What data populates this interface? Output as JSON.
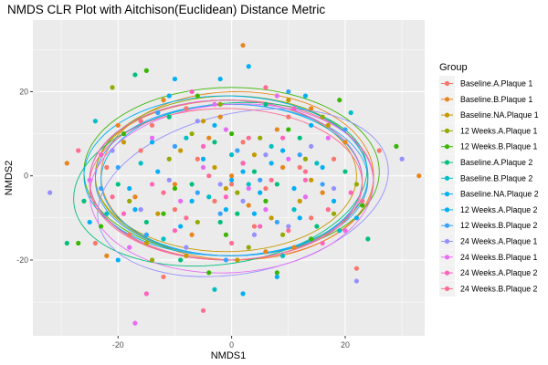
{
  "chart_data": {
    "type": "scatter",
    "title": "NMDS CLR Plot with Aitchison(Euclidean) Distance Metric",
    "xlabel": "NMDS1",
    "ylabel": "NMDS2",
    "xlim": [
      -35,
      34
    ],
    "ylim": [
      -38,
      37
    ],
    "xticks": [
      -20,
      0,
      20
    ],
    "xtick_labels": [
      "-20",
      "0",
      "20"
    ],
    "yticks": [
      -20,
      0,
      20
    ],
    "ytick_labels": [
      "-20",
      "0",
      "20"
    ],
    "grid": true,
    "panel_background": "#ebebeb",
    "legend": {
      "title": "Group",
      "position": "right"
    },
    "series": [
      {
        "name": "Baseline.A.Plaque 1",
        "color": "#F8766D",
        "points": [
          [
            -24,
            -16
          ],
          [
            -18,
            -14
          ],
          [
            -22,
            2
          ],
          [
            -14,
            12
          ],
          [
            -10,
            -8
          ],
          [
            -6,
            4
          ],
          [
            -3,
            -6
          ],
          [
            2,
            8
          ],
          [
            6,
            -3
          ],
          [
            10,
            14
          ],
          [
            14,
            -10
          ],
          [
            18,
            4
          ],
          [
            22,
            -22
          ],
          [
            26,
            6
          ],
          [
            -12,
            -24
          ],
          [
            0,
            -2
          ],
          [
            -8,
            16
          ],
          [
            12,
            2
          ],
          [
            4,
            -12
          ],
          [
            -16,
            6
          ]
        ],
        "ellipse": {
          "cx": 0,
          "cy": -1,
          "rx": 25,
          "ry": 19,
          "angle": 0
        }
      },
      {
        "name": "Baseline.B.Plaque 1",
        "color": "#E7861B",
        "points": [
          [
            -29,
            3
          ],
          [
            -22,
            -19
          ],
          [
            -17,
            -5
          ],
          [
            -12,
            18
          ],
          [
            -7,
            -14
          ],
          [
            -4,
            9
          ],
          [
            0,
            0
          ],
          [
            3,
            -7
          ],
          [
            8,
            11
          ],
          [
            11,
            -17
          ],
          [
            16,
            -4
          ],
          [
            20,
            8
          ],
          [
            2,
            31
          ],
          [
            33,
            0
          ],
          [
            -10,
            -2
          ],
          [
            6,
            -18
          ],
          [
            14,
            16
          ],
          [
            -2,
            14
          ],
          [
            9,
            2
          ],
          [
            -20,
            12
          ]
        ],
        "ellipse": {
          "cx": 1,
          "cy": 0,
          "rx": 24,
          "ry": 20,
          "angle": 0
        }
      },
      {
        "name": "Baseline.NA.Plaque 1",
        "color": "#C59900",
        "points": [
          [
            -19,
            8
          ],
          [
            -13,
            -9
          ],
          [
            -8,
            -19
          ],
          [
            -5,
            13
          ],
          [
            -1,
            -3
          ],
          [
            4,
            5
          ],
          [
            7,
            -10
          ],
          [
            10,
            18
          ],
          [
            14,
            -1
          ],
          [
            17,
            12
          ],
          [
            -15,
            -16
          ],
          [
            1,
            -20
          ],
          [
            -3,
            2
          ],
          [
            12,
            -6
          ],
          [
            -9,
            6
          ]
        ],
        "ellipse": {
          "cx": -1,
          "cy": 0,
          "rx": 23,
          "ry": 18,
          "angle": 0
        }
      },
      {
        "name": "12 Weeks.A.Plaque 1",
        "color": "#95A900",
        "points": [
          [
            -21,
            21
          ],
          [
            -18,
            -6
          ],
          [
            -11,
            4
          ],
          [
            -6,
            -11
          ],
          [
            -2,
            17
          ],
          [
            1,
            -4
          ],
          [
            5,
            9
          ],
          [
            9,
            -14
          ],
          [
            13,
            4
          ],
          [
            18,
            -9
          ],
          [
            22,
            -2
          ],
          [
            -14,
            -20
          ],
          [
            3,
            -17
          ],
          [
            -7,
            10
          ],
          [
            16,
            14
          ]
        ],
        "ellipse": {
          "cx": 0,
          "cy": 0,
          "rx": 24,
          "ry": 19,
          "angle": 0
        }
      },
      {
        "name": "12 Weeks.B.Plaque 1",
        "color": "#39B600",
        "points": [
          [
            -23,
            -12
          ],
          [
            -19,
            10
          ],
          [
            -15,
            25
          ],
          [
            -10,
            -3
          ],
          [
            -6,
            19
          ],
          [
            -1,
            -14
          ],
          [
            2,
            3
          ],
          [
            6,
            -6
          ],
          [
            10,
            11
          ],
          [
            14,
            -15
          ],
          [
            19,
            18
          ],
          [
            23,
            -7
          ],
          [
            -27,
            -16
          ],
          [
            8,
            -23
          ],
          [
            -4,
            -23
          ],
          [
            29,
            7
          ],
          [
            -12,
            -9
          ],
          [
            0,
            10
          ]
        ],
        "ellipse": {
          "cx": 0,
          "cy": 1,
          "rx": 26,
          "ry": 20,
          "angle": 0
        }
      },
      {
        "name": "Baseline.A.Plaque 2",
        "color": "#00BF7D",
        "points": [
          [
            -26,
            -6
          ],
          [
            -20,
            -2
          ],
          [
            -15,
            -11
          ],
          [
            -11,
            14
          ],
          [
            -7,
            -2
          ],
          [
            -3,
            8
          ],
          [
            1,
            -9
          ],
          [
            4,
            1
          ],
          [
            8,
            -2
          ],
          [
            12,
            9
          ],
          [
            15,
            -12
          ],
          [
            20,
            1
          ],
          [
            -29,
            -16
          ],
          [
            -9,
            -20
          ],
          [
            24,
            -15
          ],
          [
            -17,
            24
          ],
          [
            6,
            17
          ],
          [
            -2,
            -11
          ]
        ],
        "ellipse": {
          "cx": -2,
          "cy": -2,
          "rx": 26,
          "ry": 19,
          "angle": -8
        }
      },
      {
        "name": "Baseline.B.Plaque 2",
        "color": "#00BFC4",
        "points": [
          [
            -22,
            -9
          ],
          [
            -16,
            3
          ],
          [
            -12,
            -15
          ],
          [
            -8,
            9
          ],
          [
            -4,
            -5
          ],
          [
            0,
            5
          ],
          [
            3,
            -2
          ],
          [
            7,
            7
          ],
          [
            11,
            -8
          ],
          [
            15,
            3
          ],
          [
            19,
            -13
          ],
          [
            -24,
            13
          ],
          [
            21,
            15
          ],
          [
            -3,
            -27
          ],
          [
            9,
            -19
          ]
        ],
        "ellipse": {
          "cx": -1,
          "cy": -1,
          "rx": 24,
          "ry": 19,
          "angle": 0
        }
      },
      {
        "name": "Baseline.NA.Plaque 2",
        "color": "#00B0F6",
        "points": [
          [
            -18,
            -3
          ],
          [
            -14,
            8
          ],
          [
            -9,
            -12
          ],
          [
            -5,
            4
          ],
          [
            -1,
            -8
          ],
          [
            2,
            1
          ],
          [
            5,
            -4
          ],
          [
            9,
            6
          ],
          [
            12,
            -10
          ],
          [
            16,
            2
          ],
          [
            -2,
            23
          ],
          [
            2,
            -28
          ],
          [
            -11,
            19
          ],
          [
            13,
            19
          ],
          [
            -20,
            -20
          ]
        ],
        "ellipse": {
          "cx": 0,
          "cy": -1,
          "rx": 23,
          "ry": 18,
          "angle": 0
        }
      },
      {
        "name": "12 Weeks.A.Plaque 2",
        "color": "#00B0F6",
        "points": [
          [
            -25,
            -11
          ],
          [
            -17,
            -8
          ],
          [
            -13,
            1
          ],
          [
            -7,
            -6
          ],
          [
            -3,
            12
          ],
          [
            0,
            -1
          ],
          [
            4,
            -9
          ],
          [
            7,
            3
          ],
          [
            11,
            -3
          ],
          [
            14,
            12
          ],
          [
            18,
            -6
          ],
          [
            3,
            26
          ],
          [
            8,
            -24
          ],
          [
            -10,
            23
          ],
          [
            22,
            -10
          ]
        ],
        "ellipse": {
          "cx": -1,
          "cy": 0,
          "rx": 25,
          "ry": 19,
          "angle": 0
        }
      },
      {
        "name": "12 Weeks.B.Plaque 2",
        "color": "#35A2FF",
        "points": [
          [
            -20,
            2
          ],
          [
            -15,
            -14
          ],
          [
            -10,
            7
          ],
          [
            -6,
            -4
          ],
          [
            -2,
            -9
          ],
          [
            1,
            6
          ],
          [
            5,
            -1
          ],
          [
            8,
            -11
          ],
          [
            12,
            5
          ],
          [
            16,
            -2
          ],
          [
            20,
            11
          ],
          [
            -1,
            -20
          ],
          [
            -13,
            15
          ],
          [
            10,
            20
          ],
          [
            -23,
            -3
          ]
        ],
        "ellipse": {
          "cx": 0,
          "cy": -1,
          "rx": 24,
          "ry": 18,
          "angle": 0
        }
      },
      {
        "name": "24 Weeks.A.Plaque 1",
        "color": "#9590FF",
        "points": [
          [
            -32,
            -4
          ],
          [
            -21,
            6
          ],
          [
            -16,
            -8
          ],
          [
            -11,
            -1
          ],
          [
            -6,
            13
          ],
          [
            -2,
            -2
          ],
          [
            2,
            -6
          ],
          [
            6,
            5
          ],
          [
            10,
            -12
          ],
          [
            14,
            7
          ],
          [
            18,
            -3
          ],
          [
            22,
            -25
          ],
          [
            30,
            4
          ],
          [
            -8,
            -17
          ],
          [
            4,
            -14
          ]
        ],
        "ellipse": {
          "cx": 2,
          "cy": -4,
          "rx": 26,
          "ry": 19,
          "angle": -12
        }
      },
      {
        "name": "24 Weeks.B.Plaque 1",
        "color": "#E76BF3",
        "points": [
          [
            -25,
            -1
          ],
          [
            -18,
            -17
          ],
          [
            -14,
            9
          ],
          [
            -9,
            -6
          ],
          [
            -5,
            2
          ],
          [
            -1,
            11
          ],
          [
            3,
            -3
          ],
          [
            6,
            -8
          ],
          [
            10,
            4
          ],
          [
            13,
            -5
          ],
          [
            17,
            9
          ],
          [
            -17,
            -35
          ],
          [
            -3,
            17
          ],
          [
            8,
            19
          ],
          [
            20,
            -13
          ]
        ],
        "ellipse": {
          "cx": 0,
          "cy": -3,
          "rx": 25,
          "ry": 20,
          "angle": -4
        }
      },
      {
        "name": "24 Weeks.A.Plaque 2",
        "color": "#FF62BC",
        "points": [
          [
            -23,
            5
          ],
          [
            -19,
            -9
          ],
          [
            -14,
            -2
          ],
          [
            -10,
            -13
          ],
          [
            -5,
            7
          ],
          [
            -1,
            -5
          ],
          [
            2,
            3
          ],
          [
            5,
            -12
          ],
          [
            9,
            9
          ],
          [
            13,
            -1
          ],
          [
            16,
            -16
          ],
          [
            -15,
            -28
          ],
          [
            11,
            16
          ],
          [
            21,
            -4
          ],
          [
            -7,
            20
          ]
        ],
        "ellipse": {
          "cx": -1,
          "cy": -1,
          "rx": 24,
          "ry": 19,
          "angle": 0
        }
      },
      {
        "name": "24 Weeks.B.Plaque 2",
        "color": "#FF6C91",
        "points": [
          [
            -21,
            -5
          ],
          [
            -16,
            13
          ],
          [
            -12,
            -4
          ],
          [
            -8,
            -10
          ],
          [
            -4,
            0
          ],
          [
            0,
            -16
          ],
          [
            3,
            9
          ],
          [
            7,
            -1
          ],
          [
            10,
            -13
          ],
          [
            13,
            1
          ],
          [
            17,
            -8
          ],
          [
            -5,
            -32
          ],
          [
            23,
            -6
          ],
          [
            -27,
            6
          ],
          [
            6,
            21
          ]
        ],
        "ellipse": {
          "cx": -1,
          "cy": -2,
          "rx": 24,
          "ry": 18,
          "angle": 0
        }
      }
    ]
  }
}
